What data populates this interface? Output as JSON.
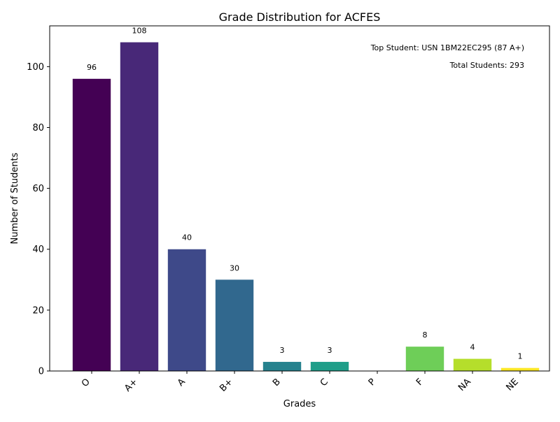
{
  "chart_data": {
    "type": "bar",
    "title": "Grade Distribution for ACFES",
    "xlabel": "Grades",
    "ylabel": "Number of Students",
    "categories": [
      "O",
      "A+",
      "A",
      "B+",
      "B",
      "C",
      "P",
      "F",
      "NA",
      "NE"
    ],
    "values": [
      96,
      108,
      40,
      30,
      3,
      3,
      0,
      8,
      4,
      1
    ],
    "data_labels": [
      "96",
      "108",
      "40",
      "30",
      "3",
      "3",
      "",
      "8",
      "4",
      "1"
    ],
    "colors": [
      "#440154",
      "#482878",
      "#3e4989",
      "#31688e",
      "#26828e",
      "#1f9e89",
      "#35b779",
      "#6ece58",
      "#b5de2b",
      "#fde725"
    ],
    "ylim": [
      0,
      113.4
    ],
    "yticks": [
      0,
      20,
      40,
      60,
      80,
      100
    ],
    "grid": false,
    "annotations": [
      "Top Student: USN 1BM22EC295 (87 A+)",
      "Total Students: 293"
    ]
  }
}
